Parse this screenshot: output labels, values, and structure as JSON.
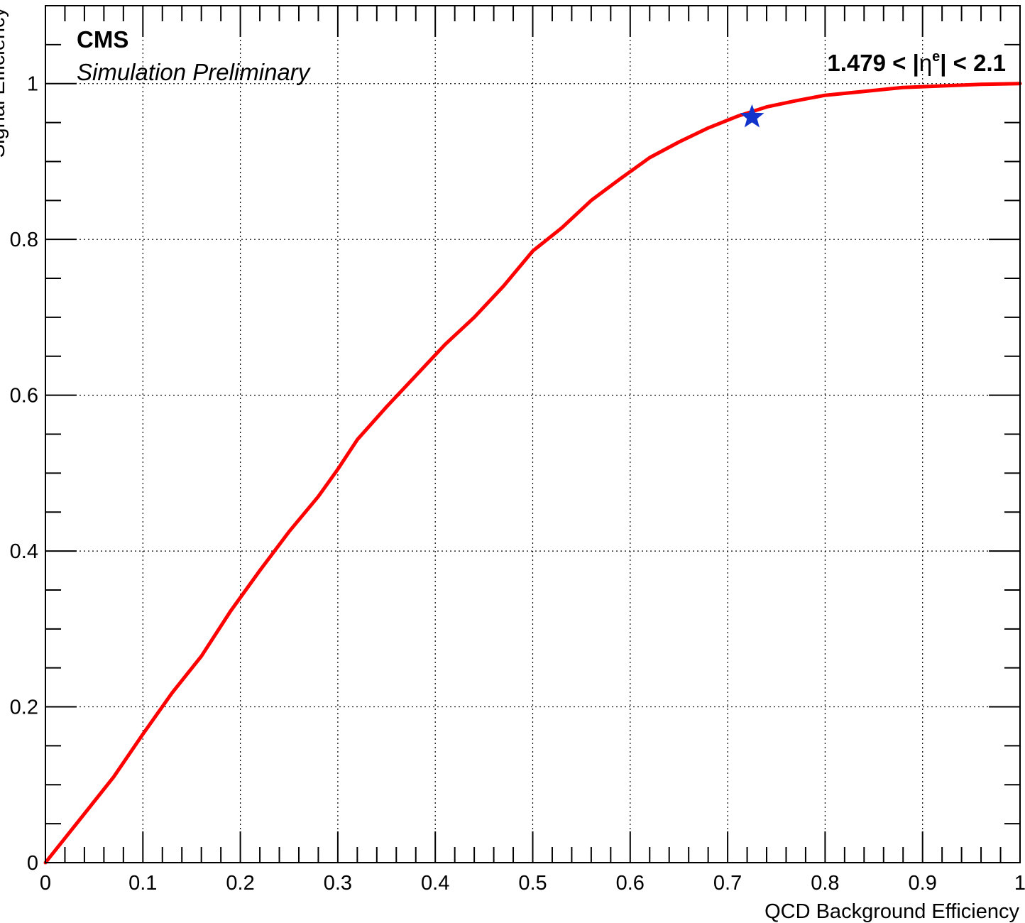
{
  "chart_data": {
    "type": "line",
    "title": "",
    "xlabel": "QCD Background Efficiency",
    "ylabel": "Signal Efficiency",
    "xlim": [
      0,
      1
    ],
    "ylim": [
      0,
      1.1
    ],
    "x_ticks": [
      0,
      0.1,
      0.2,
      0.3,
      0.4,
      0.5,
      0.6,
      0.7,
      0.8,
      0.9,
      1
    ],
    "x_tick_labels": [
      "0",
      "0.1",
      "0.2",
      "0.3",
      "0.4",
      "0.5",
      "0.6",
      "0.7",
      "0.8",
      "0.9",
      "1"
    ],
    "y_ticks": [
      0,
      0.2,
      0.4,
      0.6,
      0.8,
      1
    ],
    "y_tick_labels": [
      "0",
      "0.2",
      "0.4",
      "0.6",
      "0.8",
      "1"
    ],
    "grid": true,
    "series": [
      {
        "color": "#ff0000",
        "x": [
          0,
          0.035,
          0.07,
          0.1,
          0.13,
          0.16,
          0.19,
          0.22,
          0.25,
          0.28,
          0.3,
          0.32,
          0.35,
          0.38,
          0.41,
          0.44,
          0.47,
          0.5,
          0.53,
          0.56,
          0.59,
          0.62,
          0.65,
          0.68,
          0.71,
          0.74,
          0.77,
          0.8,
          0.84,
          0.88,
          0.92,
          0.96,
          1.0
        ],
        "y": [
          0,
          0.055,
          0.11,
          0.165,
          0.218,
          0.265,
          0.323,
          0.375,
          0.425,
          0.47,
          0.505,
          0.543,
          0.585,
          0.625,
          0.665,
          0.7,
          0.74,
          0.785,
          0.815,
          0.85,
          0.878,
          0.905,
          0.925,
          0.943,
          0.958,
          0.97,
          0.978,
          0.985,
          0.99,
          0.995,
          0.997,
          0.999,
          1.0
        ]
      }
    ],
    "markers": [
      {
        "shape": "star",
        "color": "#1133cc",
        "x": 0.725,
        "y": 0.957
      }
    ],
    "annotations": {
      "experiment": "CMS",
      "status": "Simulation Preliminary",
      "region_pre": "1.479 < |",
      "region_eta": "η",
      "region_sup": "e",
      "region_post": "| < 2.1"
    }
  }
}
